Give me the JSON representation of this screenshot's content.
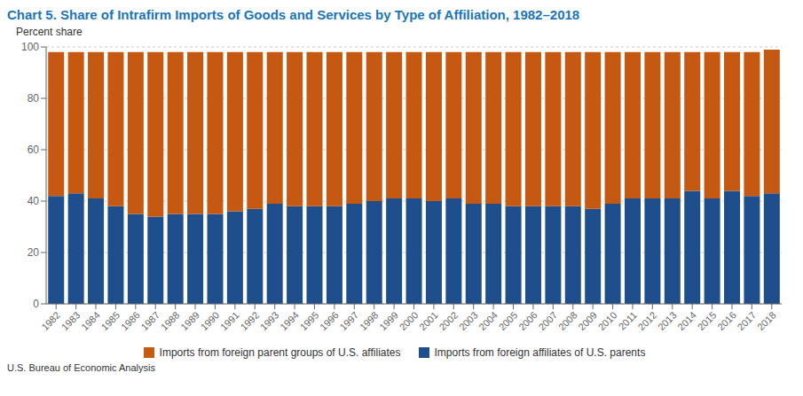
{
  "chart_data": {
    "type": "bar",
    "title": "Chart 5. Share of Intrafirm Imports of Goods and Services by Type of Affiliation, 1982–2018",
    "ylabel": "Percent share",
    "annotations": [
      "U.S. Bureau of Economic Analysis"
    ],
    "categories": [
      "1982",
      "1983",
      "1984",
      "1985",
      "1986",
      "1987",
      "1988",
      "1989",
      "1990",
      "1991",
      "1992",
      "1993",
      "1994",
      "1995",
      "1996",
      "1997",
      "1998",
      "1999",
      "2000",
      "2001",
      "2002",
      "2003",
      "2004",
      "2005",
      "2006",
      "2007",
      "2008",
      "2009",
      "2010",
      "2011",
      "2012",
      "2013",
      "2014",
      "2015",
      "2016",
      "2017",
      "2018"
    ],
    "series": [
      {
        "name": "Imports from foreign affiliates of U.S. parents",
        "color": "#1F4E8C",
        "values": [
          42,
          43,
          41,
          38,
          35,
          34,
          35,
          35,
          35,
          36,
          37,
          39,
          38,
          38,
          38,
          39,
          40,
          41,
          41,
          40,
          41,
          39,
          39,
          38,
          38,
          38,
          38,
          37,
          39,
          41,
          41,
          41,
          44,
          41,
          44,
          42,
          43
        ]
      },
      {
        "name": "Imports from foreign parent groups of U.S. affiliates",
        "color": "#C65912",
        "values": [
          56,
          55,
          57,
          60,
          63,
          64,
          63,
          63,
          63,
          62,
          61,
          59,
          60,
          60,
          60,
          59,
          58,
          57,
          57,
          58,
          57,
          59,
          59,
          60,
          60,
          60,
          60,
          61,
          59,
          57,
          57,
          57,
          54,
          57,
          54,
          56,
          56
        ]
      }
    ],
    "stacked": true,
    "ylim": [
      0,
      100
    ],
    "yticks": [
      0,
      20,
      40,
      60,
      80,
      100
    ],
    "grid": true,
    "legend": "bottom"
  }
}
